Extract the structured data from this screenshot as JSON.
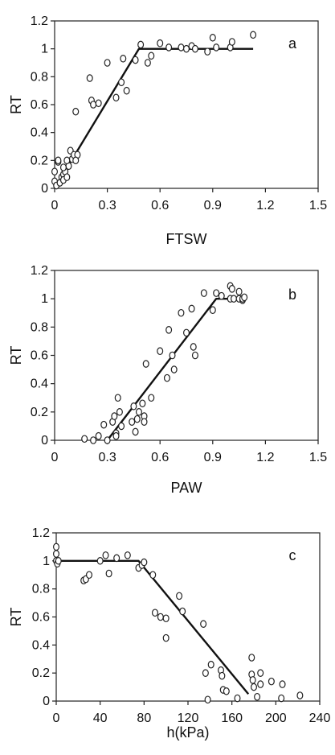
{
  "chart_data": [
    {
      "type": "scatter",
      "panel_label": "a",
      "xlabel": "FTSW",
      "ylabel": "RT",
      "xlim": [
        0,
        1.5
      ],
      "ylim": [
        0,
        1.2
      ],
      "xticks": [
        "0",
        "0.3",
        "0.6",
        "0.9",
        "1.2",
        "1.5"
      ],
      "yticks": [
        "0",
        "0.2",
        "0.4",
        "0.6",
        "0.8",
        "1",
        "1.2"
      ],
      "fit_line": {
        "x": [
          0,
          0.48,
          1.13
        ],
        "y": [
          0,
          1,
          1
        ]
      },
      "points": {
        "x": [
          0.0,
          0.0,
          0.01,
          0.02,
          0.03,
          0.04,
          0.05,
          0.05,
          0.06,
          0.07,
          0.08,
          0.09,
          0.1,
          0.11,
          0.12,
          0.13,
          0.02,
          0.07,
          0.05,
          0.12,
          0.2,
          0.21,
          0.22,
          0.25,
          0.3,
          0.35,
          0.38,
          0.39,
          0.41,
          0.46,
          0.49,
          0.53,
          0.55,
          0.6,
          0.65,
          0.72,
          0.75,
          0.78,
          0.8,
          0.87,
          0.9,
          0.92,
          1.0,
          1.01,
          1.13
        ],
        "y": [
          0.05,
          0.12,
          0.02,
          0.19,
          0.04,
          0.08,
          0.1,
          0.06,
          0.12,
          0.08,
          0.16,
          0.27,
          0.21,
          0.24,
          0.55,
          0.24,
          0.2,
          0.2,
          0.15,
          0.2,
          0.79,
          0.63,
          0.6,
          0.61,
          0.9,
          0.65,
          0.76,
          0.93,
          0.7,
          0.92,
          1.03,
          0.9,
          0.95,
          1.04,
          1.01,
          1.01,
          1.0,
          1.02,
          1.0,
          0.98,
          1.08,
          1.01,
          1.01,
          1.05,
          1.1
        ]
      }
    },
    {
      "type": "scatter",
      "panel_label": "b",
      "xlabel": "PAW",
      "ylabel": "RT",
      "xlim": [
        0,
        1.5
      ],
      "ylim": [
        0,
        1.2
      ],
      "xticks": [
        "0",
        "0.3",
        "0.6",
        "0.9",
        "1.2",
        "1.5"
      ],
      "yticks": [
        "0",
        "0.2",
        "0.4",
        "0.6",
        "0.8",
        "1",
        "1.2"
      ],
      "fit_line": {
        "x": [
          0.3,
          0.92,
          1.07
        ],
        "y": [
          0,
          1,
          1
        ]
      },
      "points": {
        "x": [
          0.17,
          0.22,
          0.25,
          0.28,
          0.3,
          0.33,
          0.34,
          0.35,
          0.35,
          0.36,
          0.37,
          0.38,
          0.44,
          0.45,
          0.46,
          0.47,
          0.48,
          0.5,
          0.51,
          0.51,
          0.52,
          0.55,
          0.6,
          0.64,
          0.65,
          0.67,
          0.68,
          0.72,
          0.75,
          0.78,
          0.79,
          0.8,
          0.85,
          0.9,
          0.92,
          0.95,
          1.0,
          1.0,
          1.01,
          1.02,
          1.05,
          1.05,
          1.07,
          1.07,
          1.08
        ],
        "y": [
          0.01,
          0.0,
          0.03,
          0.11,
          0.0,
          0.13,
          0.17,
          0.05,
          0.03,
          0.3,
          0.2,
          0.1,
          0.13,
          0.24,
          0.06,
          0.15,
          0.2,
          0.26,
          0.17,
          0.13,
          0.54,
          0.3,
          0.63,
          0.44,
          0.78,
          0.6,
          0.5,
          0.9,
          0.76,
          0.93,
          0.66,
          0.6,
          1.04,
          0.92,
          1.04,
          1.02,
          1.09,
          1.0,
          1.07,
          1.0,
          1.05,
          1.0,
          0.99,
          1.0,
          1.01
        ]
      }
    },
    {
      "type": "scatter",
      "panel_label": "c",
      "xlabel": "h(kPa)",
      "ylabel": "RT",
      "xlim": [
        0,
        240
      ],
      "ylim": [
        0,
        1.2
      ],
      "xticks": [
        "0",
        "40",
        "80",
        "120",
        "160",
        "200",
        "240"
      ],
      "yticks": [
        "0",
        "0.2",
        "0.4",
        "0.6",
        "0.8",
        "1",
        "1.2"
      ],
      "fit_line": {
        "x": [
          0,
          75,
          175
        ],
        "y": [
          1,
          1,
          0.05
        ]
      },
      "points": {
        "x": [
          0,
          0,
          0,
          1,
          2,
          25,
          27,
          30,
          40,
          45,
          48,
          55,
          65,
          75,
          78,
          80,
          88,
          90,
          95,
          100,
          100,
          112,
          115,
          134,
          136,
          138,
          141,
          150,
          151,
          152,
          155,
          165,
          178,
          178,
          179,
          180,
          183,
          186,
          186,
          196,
          205,
          206,
          222
        ],
        "y": [
          1.1,
          1.05,
          1.0,
          0.98,
          1.0,
          0.86,
          0.87,
          0.9,
          1.0,
          1.04,
          0.91,
          1.02,
          1.04,
          0.95,
          0.97,
          0.99,
          0.9,
          0.63,
          0.6,
          0.45,
          0.59,
          0.75,
          0.64,
          0.55,
          0.2,
          0.01,
          0.26,
          0.22,
          0.18,
          0.08,
          0.07,
          0.02,
          0.31,
          0.19,
          0.15,
          0.1,
          0.03,
          0.2,
          0.12,
          0.14,
          0.02,
          0.12,
          0.04
        ]
      }
    }
  ]
}
